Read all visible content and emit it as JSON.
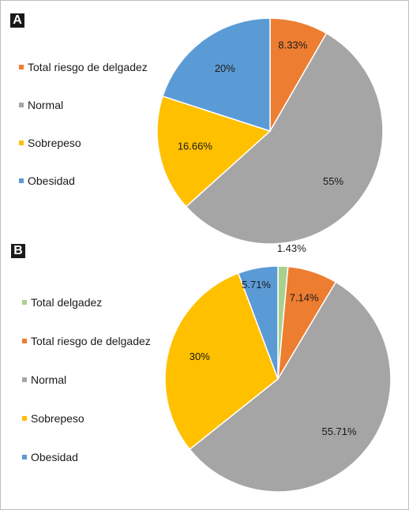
{
  "chart_data": [
    {
      "type": "pie",
      "panel_label": "A",
      "categories": [
        "Total riesgo de delgadez",
        "Normal",
        "Sobrepeso",
        "Obesidad"
      ],
      "values": [
        8.33,
        55,
        16.66,
        20
      ],
      "data_labels": [
        "8.33%",
        "55%",
        "16.66%",
        "20%"
      ],
      "colors": [
        "#ED7D31",
        "#A5A5A5",
        "#FFC000",
        "#5B9BD5"
      ],
      "legend_position": "left"
    },
    {
      "type": "pie",
      "panel_label": "B",
      "categories": [
        "Total  delgadez",
        "Total riesgo de delgadez",
        "Normal",
        "Sobrepeso",
        "Obesidad"
      ],
      "values": [
        1.43,
        7.14,
        55.71,
        30,
        5.71
      ],
      "data_labels": [
        "1.43%",
        "7.14%",
        "55.71%",
        "30%",
        "5.71%"
      ],
      "colors": [
        "#A9D18E",
        "#ED7D31",
        "#A5A5A5",
        "#FFC000",
        "#5B9BD5"
      ],
      "legend_position": "left"
    }
  ]
}
